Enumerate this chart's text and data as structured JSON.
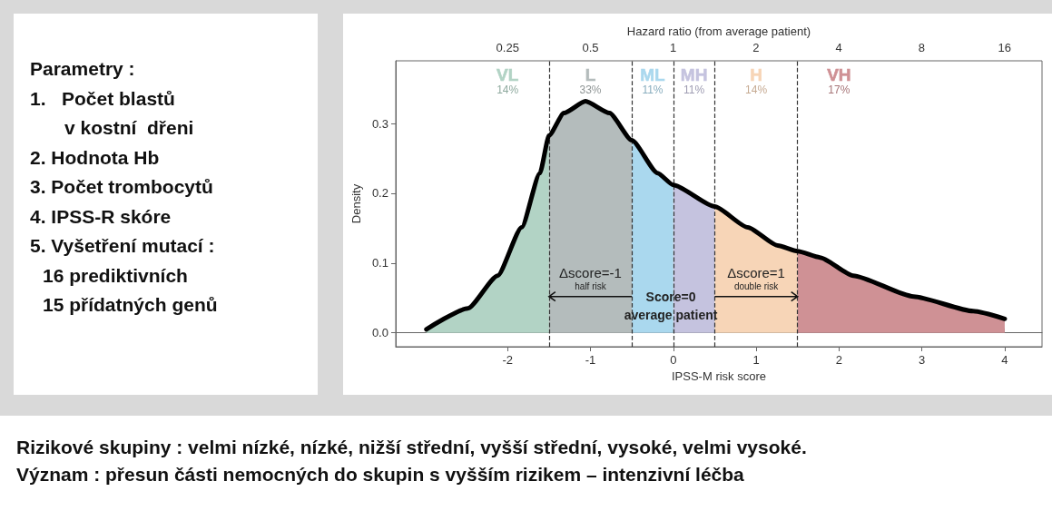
{
  "chart_data": {
    "type": "area",
    "xlabel": "IPSS-M risk score",
    "ylabel": "Density",
    "x2label": "Hazard ratio (from average patient)",
    "xlim": [
      -3.35,
      4.45
    ],
    "xticks": [
      -2,
      -1,
      0,
      1,
      2,
      3,
      4
    ],
    "x2lim": [
      0.098,
      21.9
    ],
    "x2ticks": [
      0.25,
      0.5,
      1,
      2,
      4,
      8,
      16
    ],
    "log": "x2",
    "ylim": [
      -0.02,
      0.39
    ],
    "yticks": [
      {
        "value": 0,
        "label": "0.0"
      },
      0.1,
      0.2,
      0.3
    ],
    "grid": false,
    "legend": false,
    "marker": "none",
    "series": [
      {
        "name": "VL",
        "color": "#b2d3c5",
        "x": [
          -2.98,
          -2.48,
          -2.12,
          -1.83,
          -1.61,
          -1.5
        ],
        "values": [
          0.005,
          0.035,
          0.082,
          0.151,
          0.229,
          0.283
        ]
      },
      {
        "name": "L",
        "color": "#b4bcbc",
        "x": [
          -1.5,
          -1.32,
          -1.06,
          -0.77,
          -0.5
        ],
        "values": [
          0.283,
          0.315,
          0.332,
          0.315,
          0.276
        ]
      },
      {
        "name": "ML",
        "color": "#aad8ee",
        "x": [
          -0.5,
          -0.19,
          0
        ],
        "values": [
          0.276,
          0.229,
          0.212
        ]
      },
      {
        "name": "MH",
        "color": "#c5c3df",
        "x": [
          0,
          0.5
        ],
        "values": [
          0.212,
          0.181
        ]
      },
      {
        "name": "H",
        "color": "#f7d5b7",
        "x": [
          0.5,
          0.9,
          1.26,
          1.5
        ],
        "values": [
          0.181,
          0.151,
          0.125,
          0.117
        ]
      },
      {
        "name": "VH",
        "color": "#cf9195",
        "x": [
          1.5,
          1.77,
          2.17,
          2.9,
          3.62,
          4
        ],
        "values": [
          0.117,
          0.108,
          0.082,
          0.052,
          0.031,
          0.02
        ]
      },
      {
        "type": "line",
        "color": "#000000",
        "x": [
          -2.98,
          -2.48,
          -2.12,
          -1.83,
          -1.61,
          -1.5,
          -1.32,
          -1.06,
          -0.77,
          -0.5,
          -0.19,
          0,
          0.5,
          0.9,
          1.26,
          1.5,
          1.77,
          2.17,
          2.9,
          3.62,
          4
        ],
        "values": [
          0.005,
          0.035,
          0.082,
          0.151,
          0.229,
          0.283,
          0.315,
          0.332,
          0.315,
          0.276,
          0.229,
          0.212,
          0.181,
          0.151,
          0.125,
          0.117,
          0.108,
          0.082,
          0.052,
          0.031,
          0.02
        ]
      }
    ],
    "ref_lines": [
      {
        "axis": "x",
        "value": -1.5,
        "color": "#333333",
        "line_style": "dashed"
      },
      {
        "axis": "x",
        "value": -0.5,
        "color": "#333333",
        "line_style": "dashed"
      },
      {
        "axis": "x",
        "value": 0,
        "color": "#333333",
        "line_style": "dashed"
      },
      {
        "axis": "x",
        "value": 0.5,
        "color": "#333333",
        "line_style": "dashed"
      },
      {
        "axis": "x",
        "value": 1.5,
        "color": "#333333",
        "line_style": "dashed"
      }
    ],
    "annotations": [
      "14%",
      "33%",
      "11%",
      "11%",
      "14%",
      "17%",
      "Δscore=-1",
      "half risk",
      "Δscore=1",
      "double risk",
      {
        "text": "Score=0",
        "x": -0.03,
        "y": 0.052
      },
      {
        "text": "average patient",
        "x": -0.03,
        "y": 0.025
      },
      "Parametry :",
      "1.   Počet blastů",
      "v kostní  dřeni",
      "2. Hodnota Hb",
      "3. Počet trombocytů",
      "4. IPSS-R skóre",
      "5. Vyšetření mutací :",
      "16 prediktivních",
      "15 přídatných genů",
      "Rizikové skupiny : velmi nízké, nízké, nižší střední, vyšší střední, vysoké, velmi vysoké.",
      "Význam : přesun části nemocných do skupin s vyšším rizikem – intenzivní léčba"
    ]
  }
}
